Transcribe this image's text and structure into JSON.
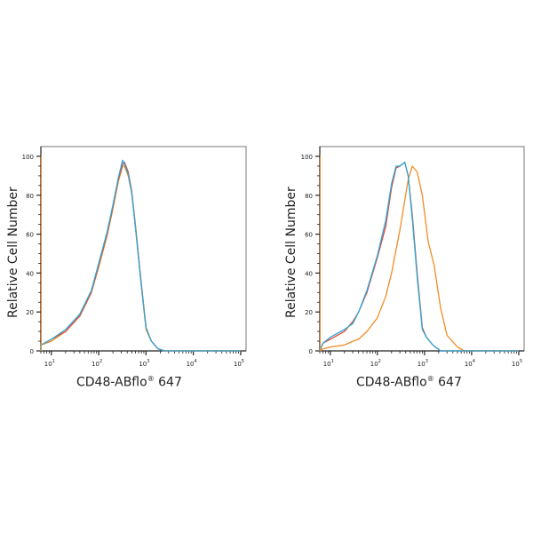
{
  "chart_data": [
    {
      "type": "line",
      "title": "",
      "xlabel": "CD48-ABflo® 647",
      "ylabel": "Relative Cell Number",
      "xscale": "log",
      "xlim": [
        6,
        130000
      ],
      "ylim": [
        0,
        100
      ],
      "x_ticks": [
        "10^1",
        "10^2",
        "10^3",
        "10^4",
        "10^5"
      ],
      "y_ticks": [
        0,
        20,
        40,
        60,
        80,
        100
      ],
      "grid": false,
      "legend": "none",
      "series": [
        {
          "name": "Red",
          "color": "#e8452c",
          "x": [
            6,
            10,
            20,
            40,
            70,
            100,
            150,
            200,
            260,
            320,
            350,
            420,
            500,
            600,
            800,
            1000,
            1300,
            1800,
            2500,
            100000
          ],
          "values": [
            3,
            6,
            10,
            18,
            30,
            44,
            60,
            74,
            88,
            96,
            97,
            92,
            82,
            64,
            34,
            12,
            5,
            1,
            0,
            0
          ]
        },
        {
          "name": "Blue",
          "color": "#29a9db",
          "x": [
            6,
            10,
            20,
            40,
            70,
            100,
            150,
            200,
            260,
            320,
            350,
            420,
            500,
            600,
            800,
            1000,
            1300,
            1800,
            2500,
            100000
          ],
          "values": [
            3,
            6,
            11,
            19,
            31,
            45,
            61,
            75,
            89,
            98,
            96,
            91,
            81,
            63,
            33,
            12,
            5,
            1,
            0,
            0
          ]
        },
        {
          "name": "Orange",
          "color": "#f28c28",
          "x": [
            6,
            10,
            20,
            40,
            70,
            100,
            150,
            200,
            260,
            320,
            350,
            420,
            500,
            600,
            800,
            1000,
            1300,
            1800,
            2500,
            100000
          ],
          "values": [
            3,
            5,
            10,
            18,
            30,
            43,
            59,
            73,
            87,
            95,
            95,
            90,
            81,
            63,
            33,
            11,
            5,
            1,
            0,
            0
          ]
        }
      ]
    },
    {
      "type": "line",
      "title": "",
      "xlabel": "CD48-ABflo® 647",
      "ylabel": "Relative Cell Number",
      "xscale": "log",
      "xlim": [
        6,
        130000
      ],
      "ylim": [
        0,
        100
      ],
      "x_ticks": [
        "10^1",
        "10^2",
        "10^3",
        "10^4",
        "10^5"
      ],
      "y_ticks": [
        0,
        20,
        40,
        60,
        80,
        100
      ],
      "grid": false,
      "legend": "none",
      "series": [
        {
          "name": "Red",
          "color": "#e8452c",
          "x": [
            7,
            10,
            20,
            30,
            40,
            60,
            100,
            150,
            200,
            250,
            300,
            380,
            450,
            550,
            700,
            900,
            1100,
            1500,
            2200,
            100000
          ],
          "values": [
            4,
            6,
            10,
            15,
            20,
            30,
            48,
            64,
            84,
            94,
            95,
            97,
            90,
            70,
            40,
            12,
            7,
            3,
            0,
            0
          ]
        },
        {
          "name": "Blue",
          "color": "#29a9db",
          "x": [
            7,
            10,
            20,
            30,
            40,
            60,
            100,
            150,
            200,
            250,
            300,
            380,
            450,
            550,
            700,
            900,
            1100,
            1500,
            2200,
            100000
          ],
          "values": [
            4,
            7,
            11,
            14,
            20,
            31,
            49,
            67,
            86,
            95,
            95,
            97,
            90,
            68,
            38,
            11,
            7,
            3,
            0,
            0
          ]
        },
        {
          "name": "Orange",
          "color": "#f28c28",
          "x": [
            7,
            10,
            20,
            30,
            40,
            60,
            100,
            150,
            200,
            300,
            450,
            550,
            700,
            900,
            1200,
            1600,
            2200,
            3000,
            5000,
            7000,
            100000
          ],
          "values": [
            1,
            2,
            3,
            5,
            6,
            10,
            17,
            28,
            40,
            62,
            88,
            95,
            92,
            80,
            56,
            44,
            22,
            8,
            2,
            0,
            0
          ]
        }
      ]
    }
  ],
  "panels": [
    {
      "ylabel": "Relative Cell Number",
      "xlabel_main": "CD48-ABflo",
      "xlabel_sup": "®",
      "xlabel_tail": " 647"
    },
    {
      "ylabel": "Relative Cell Number",
      "xlabel_main": "CD48-ABflo",
      "xlabel_sup": "®",
      "xlabel_tail": " 647"
    }
  ]
}
